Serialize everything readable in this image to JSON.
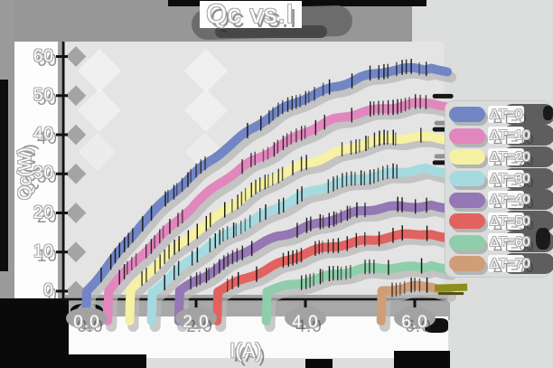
{
  "chart_data": {
    "type": "line",
    "title": "Qc vs.I",
    "xlabel": "I(A)",
    "ylabel": "Qc(W)",
    "xticks": [
      "0.0",
      "2.0",
      "4.0",
      "6.0"
    ],
    "xtick_values": [
      0,
      2,
      4,
      6
    ],
    "yticks": [
      "0",
      "10",
      "20",
      "30",
      "40",
      "50",
      "60"
    ],
    "ytick_values": [
      0,
      10,
      20,
      30,
      40,
      50,
      60
    ],
    "xlim": [
      0,
      6.6
    ],
    "ylim": [
      0,
      60
    ],
    "grid": false,
    "legend_position": "right",
    "style": "hand-drawn sketch, very thick strokes with black hatch marks, white outlined labels with heavy drop shadows",
    "series": [
      {
        "name": "ΔT=0",
        "color": "#7286c5",
        "points": [
          [
            0,
            0
          ],
          [
            0.5,
            8.7
          ],
          [
            1,
            17.2
          ],
          [
            1.5,
            23.9
          ],
          [
            2,
            30.4
          ],
          [
            2.5,
            36.3
          ],
          [
            3,
            41.4
          ],
          [
            3.5,
            45.7
          ],
          [
            4,
            49.4
          ],
          [
            4.5,
            52.3
          ],
          [
            5,
            54.6
          ],
          [
            5.5,
            56.1
          ],
          [
            6,
            56.9
          ],
          [
            6.3,
            57
          ]
        ]
      },
      {
        "name": "ΔT=10",
        "color": "#e287be",
        "points": [
          [
            0.4,
            0
          ],
          [
            0.5,
            1.6
          ],
          [
            1,
            9.3
          ],
          [
            1.5,
            16.2
          ],
          [
            2,
            22.5
          ],
          [
            2.5,
            28.1
          ],
          [
            3,
            33
          ],
          [
            3.5,
            37.2
          ],
          [
            4,
            40.7
          ],
          [
            4.5,
            43.5
          ],
          [
            5,
            45.7
          ],
          [
            5.5,
            47.1
          ],
          [
            6,
            47.9
          ],
          [
            6.3,
            48
          ]
        ]
      },
      {
        "name": "ΔT=20",
        "color": "#f6f1a3",
        "points": [
          [
            0.8,
            0
          ],
          [
            1,
            2.8
          ],
          [
            1.5,
            9.4
          ],
          [
            2,
            15.4
          ],
          [
            2.5,
            20.6
          ],
          [
            3,
            25.3
          ],
          [
            3.5,
            29.3
          ],
          [
            4,
            32.6
          ],
          [
            4.5,
            35.3
          ],
          [
            5,
            37.3
          ],
          [
            5.5,
            38.7
          ],
          [
            6,
            39.4
          ],
          [
            6.3,
            39.5
          ]
        ]
      },
      {
        "name": "ΔT=30",
        "color": "#a5dbe0",
        "points": [
          [
            1.2,
            0
          ],
          [
            1.5,
            3.5
          ],
          [
            2,
            9
          ],
          [
            2.5,
            13.8
          ],
          [
            3,
            18
          ],
          [
            3.5,
            21.7
          ],
          [
            4,
            24.7
          ],
          [
            4.5,
            27.1
          ],
          [
            5,
            29
          ],
          [
            5.5,
            30.2
          ],
          [
            6,
            30.9
          ],
          [
            6.3,
            31
          ]
        ]
      },
      {
        "name": "ΔT=40",
        "color": "#9477b4",
        "points": [
          [
            1.7,
            0
          ],
          [
            2,
            2.8
          ],
          [
            2.5,
            7
          ],
          [
            3,
            10.7
          ],
          [
            3.5,
            13.8
          ],
          [
            4,
            16.5
          ],
          [
            4.5,
            18.6
          ],
          [
            5,
            20.2
          ],
          [
            5.5,
            21.3
          ],
          [
            6,
            21.9
          ],
          [
            6.3,
            22
          ]
        ]
      },
      {
        "name": "ΔT=50",
        "color": "#e26260",
        "points": [
          [
            2.4,
            0
          ],
          [
            2.5,
            0.7
          ],
          [
            3,
            4.1
          ],
          [
            3.5,
            7
          ],
          [
            4,
            9.5
          ],
          [
            4.5,
            11.4
          ],
          [
            5,
            12.9
          ],
          [
            5.5,
            13.9
          ],
          [
            6,
            14.4
          ],
          [
            6.3,
            14.5
          ]
        ]
      },
      {
        "name": "ΔT=60",
        "color": "#8fceab",
        "points": [
          [
            3.3,
            0
          ],
          [
            3.5,
            0.8
          ],
          [
            4,
            2.7
          ],
          [
            4.5,
            4.2
          ],
          [
            5,
            5.3
          ],
          [
            5.5,
            6
          ],
          [
            6,
            6.4
          ],
          [
            6.3,
            6.5
          ]
        ]
      },
      {
        "name": "ΔT=70",
        "color": "#cf9d78",
        "points": [
          [
            5.4,
            0
          ],
          [
            5.5,
            0.2
          ],
          [
            6,
            0.9
          ],
          [
            6.3,
            1
          ]
        ]
      }
    ]
  }
}
